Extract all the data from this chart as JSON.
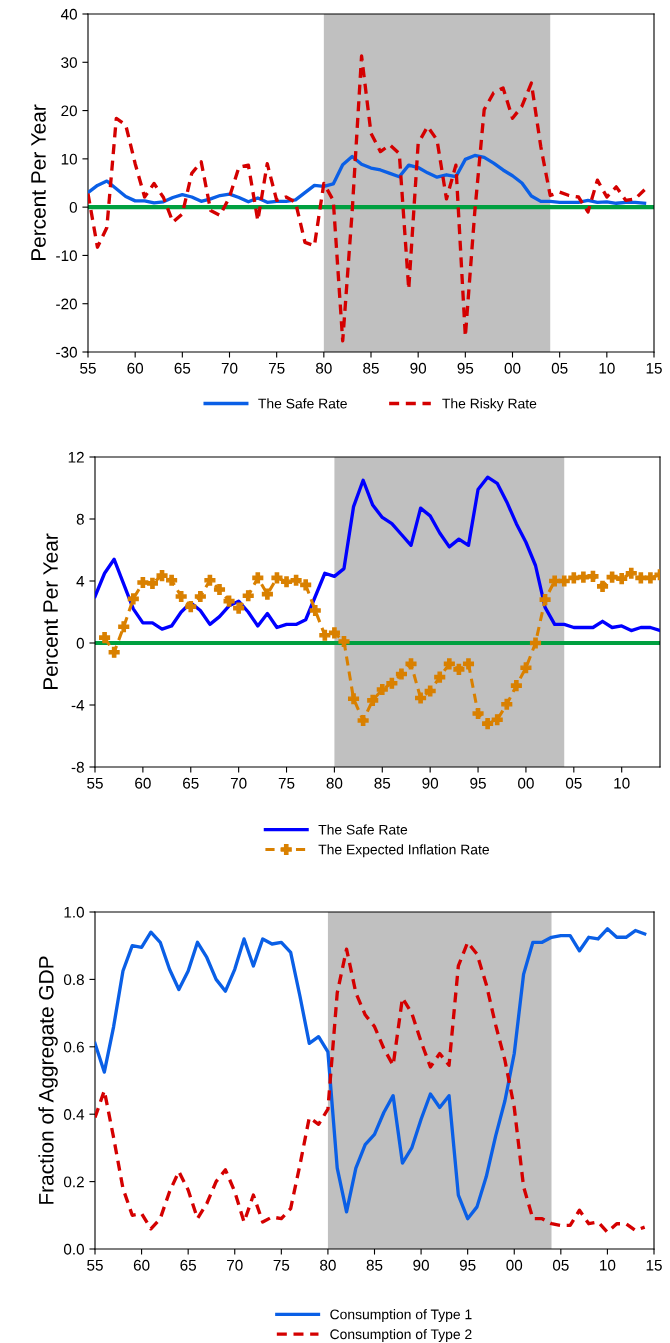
{
  "chart_data": [
    {
      "type": "line",
      "ylabel": "Percent Per Year",
      "x": [
        1955,
        1956,
        1957,
        1958,
        1959,
        1960,
        1961,
        1962,
        1963,
        1964,
        1965,
        1966,
        1967,
        1968,
        1969,
        1970,
        1971,
        1972,
        1973,
        1974,
        1975,
        1976,
        1977,
        1978,
        1979,
        1980,
        1981,
        1982,
        1983,
        1984,
        1985,
        1986,
        1987,
        1988,
        1989,
        1990,
        1991,
        1992,
        1993,
        1994,
        1995,
        1996,
        1997,
        1998,
        1999,
        2000,
        2001,
        2002,
        2003,
        2004,
        2005,
        2006,
        2007,
        2008,
        2009,
        2010,
        2011,
        2012,
        2013,
        2014
      ],
      "series": [
        {
          "name": "The Safe Rate",
          "color": "#0a5fe6",
          "line_style": "solid",
          "values": [
            3.0,
            4.5,
            5.4,
            3.8,
            2.2,
            1.3,
            1.3,
            0.9,
            1.1,
            2.0,
            2.6,
            2.1,
            1.2,
            1.7,
            2.4,
            2.7,
            2.0,
            1.1,
            1.9,
            1.0,
            1.2,
            1.2,
            1.5,
            3.0,
            4.5,
            4.3,
            4.8,
            8.8,
            10.5,
            8.9,
            8.1,
            7.7,
            7.0,
            6.3,
            8.7,
            8.2,
            7.1,
            6.2,
            6.7,
            6.3,
            9.9,
            10.7,
            10.3,
            9.1,
            7.7,
            6.5,
            5.0,
            2.3,
            1.2,
            1.2,
            1.0,
            1.0,
            1.0,
            1.4,
            1.0,
            1.1,
            0.8,
            1.0,
            1.0,
            0.8
          ]
        },
        {
          "name": "The Risky Rate",
          "color": "#d40000",
          "line_style": "dashed",
          "values": [
            2.8,
            -8.3,
            -4.2,
            18.4,
            17,
            9,
            2.1,
            4.9,
            2,
            -3.1,
            -1.4,
            7,
            9.4,
            -0.7,
            -1.7,
            2.1,
            8.3,
            8.7,
            -2.8,
            9,
            1.4,
            2.1,
            1.0,
            -7.3,
            -8,
            4.9,
            1.4,
            -27.7,
            -1,
            31.3,
            15.3,
            11.5,
            12.9,
            11.1,
            -17,
            13.2,
            16.7,
            13.9,
            1.7,
            8.7,
            -26.8,
            -1,
            20.2,
            23.7,
            24.7,
            18.4,
            20.9,
            25.7,
            12.5,
            2.4,
            3.1,
            2.4,
            2.1,
            -1.0,
            5.6,
            2.1,
            4.2,
            1.4,
            1.7,
            3.6
          ]
        }
      ],
      "xlim": [
        1955,
        2015
      ],
      "xticks": [
        {
          "value": 1955,
          "label": "55"
        },
        {
          "value": 1960,
          "label": "60"
        },
        {
          "value": 1965,
          "label": "65"
        },
        {
          "value": 1970,
          "label": "70"
        },
        {
          "value": 1975,
          "label": "75"
        },
        {
          "value": 1980,
          "label": "80"
        },
        {
          "value": 1985,
          "label": "85"
        },
        {
          "value": 1990,
          "label": "90"
        },
        {
          "value": 1995,
          "label": "95"
        },
        {
          "value": 2000,
          "label": "00"
        },
        {
          "value": 2005,
          "label": "05"
        },
        {
          "value": 2010,
          "label": "10"
        },
        {
          "value": 2015,
          "label": "15"
        }
      ],
      "ylim": [
        -30,
        40
      ],
      "yticks": [
        -30,
        -20,
        -10,
        0,
        10,
        20,
        30,
        40
      ],
      "ref_lines": [
        {
          "axis": "y",
          "value": 0,
          "color": "#00a040"
        }
      ],
      "bands": [
        {
          "axis": "x",
          "from": 1980,
          "to": 2004,
          "color": "#c0c0c0"
        }
      ],
      "grid": false,
      "legend": "bottom"
    },
    {
      "type": "line",
      "ylabel": "Percent Per Year",
      "x": [
        1955,
        1956,
        1957,
        1958,
        1959,
        1960,
        1961,
        1962,
        1963,
        1964,
        1965,
        1966,
        1967,
        1968,
        1969,
        1970,
        1971,
        1972,
        1973,
        1974,
        1975,
        1976,
        1977,
        1978,
        1979,
        1980,
        1981,
        1982,
        1983,
        1984,
        1985,
        1986,
        1987,
        1988,
        1989,
        1990,
        1991,
        1992,
        1993,
        1994,
        1995,
        1996,
        1997,
        1998,
        1999,
        2000,
        2001,
        2002,
        2003,
        2004,
        2005,
        2006,
        2007,
        2008,
        2009,
        2010,
        2011,
        2012,
        2013,
        2014
      ],
      "series": [
        {
          "name": "The Safe Rate",
          "color": "#0000ff",
          "line_style": "solid",
          "marker": "none",
          "values": [
            3.0,
            4.5,
            5.4,
            3.8,
            2.2,
            1.3,
            1.3,
            0.9,
            1.1,
            2.0,
            2.6,
            2.1,
            1.2,
            1.7,
            2.4,
            2.7,
            2.0,
            1.1,
            1.9,
            1.0,
            1.2,
            1.2,
            1.5,
            3.0,
            4.5,
            4.3,
            4.8,
            8.8,
            10.5,
            8.9,
            8.1,
            7.7,
            7.0,
            6.3,
            8.7,
            8.2,
            7.1,
            6.2,
            6.7,
            6.3,
            9.9,
            10.7,
            10.3,
            9.1,
            7.7,
            6.5,
            5.0,
            2.3,
            1.2,
            1.2,
            1.0,
            1.0,
            1.0,
            1.4,
            1.0,
            1.1,
            0.8,
            1.0,
            1.0,
            0.8
          ]
        },
        {
          "name": "The Expected Inflation Rate",
          "color": "#d98000",
          "line_style": "dashed",
          "marker": "cross",
          "values": [
            null,
            0.35,
            -0.6,
            1.05,
            2.85,
            3.9,
            3.85,
            4.35,
            4.05,
            3.0,
            2.35,
            3.0,
            4.05,
            3.45,
            2.7,
            2.25,
            3.05,
            4.2,
            3.15,
            4.2,
            3.95,
            4.05,
            3.75,
            2.1,
            0.5,
            0.65,
            0.1,
            -3.6,
            -5.0,
            -3.7,
            -3.0,
            -2.6,
            -2.0,
            -1.35,
            -3.55,
            -3.1,
            -2.2,
            -1.35,
            -1.7,
            -1.35,
            -4.55,
            -5.2,
            -4.95,
            -3.95,
            -2.75,
            -1.6,
            0.0,
            2.8,
            4.0,
            4.0,
            4.2,
            4.25,
            4.3,
            3.65,
            4.25,
            4.15,
            4.5,
            4.2,
            4.2,
            4.4
          ]
        }
      ],
      "xlim": [
        1955,
        2014
      ],
      "xticks": [
        {
          "value": 1955,
          "label": "55"
        },
        {
          "value": 1960,
          "label": "60"
        },
        {
          "value": 1965,
          "label": "65"
        },
        {
          "value": 1970,
          "label": "70"
        },
        {
          "value": 1975,
          "label": "75"
        },
        {
          "value": 1980,
          "label": "80"
        },
        {
          "value": 1985,
          "label": "85"
        },
        {
          "value": 1990,
          "label": "90"
        },
        {
          "value": 1995,
          "label": "95"
        },
        {
          "value": 2000,
          "label": "00"
        },
        {
          "value": 2005,
          "label": "05"
        },
        {
          "value": 2010,
          "label": "10"
        }
      ],
      "ylim": [
        -8,
        12
      ],
      "yticks": [
        -8,
        -4,
        0,
        4,
        8,
        12
      ],
      "ref_lines": [
        {
          "axis": "y",
          "value": 0,
          "color": "#00a040"
        }
      ],
      "bands": [
        {
          "axis": "x",
          "from": 1980,
          "to": 2004,
          "color": "#c0c0c0"
        }
      ],
      "grid": false,
      "legend": "bottom"
    },
    {
      "type": "line",
      "ylabel": "Fraction of Aggregate GDP",
      "x": [
        1955,
        1956,
        1957,
        1958,
        1959,
        1960,
        1961,
        1962,
        1963,
        1964,
        1965,
        1966,
        1967,
        1968,
        1969,
        1970,
        1971,
        1972,
        1973,
        1974,
        1975,
        1976,
        1977,
        1978,
        1979,
        1980,
        1981,
        1982,
        1983,
        1984,
        1985,
        1986,
        1987,
        1988,
        1989,
        1990,
        1991,
        1992,
        1993,
        1994,
        1995,
        1996,
        1997,
        1998,
        1999,
        2000,
        2001,
        2002,
        2003,
        2004,
        2005,
        2006,
        2007,
        2008,
        2009,
        2010,
        2011,
        2012,
        2013,
        2014
      ],
      "series": [
        {
          "name": "Consumption of Type 1",
          "color": "#0a5fe6",
          "line_style": "solid",
          "values": [
            0.61,
            0.525,
            0.66,
            0.825,
            0.9,
            0.895,
            0.94,
            0.91,
            0.83,
            0.77,
            0.825,
            0.91,
            0.865,
            0.8,
            0.765,
            0.83,
            0.92,
            0.84,
            0.92,
            0.905,
            0.91,
            0.88,
            0.75,
            0.61,
            0.63,
            0.585,
            0.24,
            0.11,
            0.24,
            0.31,
            0.34,
            0.405,
            0.455,
            0.255,
            0.3,
            0.385,
            0.46,
            0.42,
            0.455,
            0.16,
            0.09,
            0.125,
            0.215,
            0.335,
            0.44,
            0.58,
            0.815,
            0.91,
            0.91,
            0.925,
            0.93,
            0.93,
            0.885,
            0.925,
            0.92,
            0.95,
            0.925,
            0.925,
            0.945,
            0.935
          ]
        },
        {
          "name": "Consumption of Type 2",
          "color": "#d40000",
          "line_style": "dashed",
          "values": [
            0.39,
            0.47,
            0.33,
            0.18,
            0.1,
            0.105,
            0.06,
            0.09,
            0.17,
            0.23,
            0.175,
            0.09,
            0.135,
            0.2,
            0.235,
            0.17,
            0.08,
            0.16,
            0.08,
            0.095,
            0.09,
            0.12,
            0.25,
            0.39,
            0.37,
            0.415,
            0.76,
            0.89,
            0.76,
            0.695,
            0.66,
            0.595,
            0.545,
            0.745,
            0.7,
            0.615,
            0.54,
            0.58,
            0.545,
            0.84,
            0.91,
            0.875,
            0.785,
            0.665,
            0.56,
            0.42,
            0.185,
            0.09,
            0.09,
            0.075,
            0.07,
            0.07,
            0.115,
            0.075,
            0.08,
            0.05,
            0.075,
            0.075,
            0.055,
            0.065
          ]
        }
      ],
      "xlim": [
        1955,
        2015
      ],
      "xticks": [
        {
          "value": 1955,
          "label": "55"
        },
        {
          "value": 1960,
          "label": "60"
        },
        {
          "value": 1965,
          "label": "65"
        },
        {
          "value": 1970,
          "label": "70"
        },
        {
          "value": 1975,
          "label": "75"
        },
        {
          "value": 1980,
          "label": "80"
        },
        {
          "value": 1985,
          "label": "85"
        },
        {
          "value": 1990,
          "label": "90"
        },
        {
          "value": 1995,
          "label": "95"
        },
        {
          "value": 2000,
          "label": "00"
        },
        {
          "value": 2005,
          "label": "05"
        },
        {
          "value": 2010,
          "label": "10"
        },
        {
          "value": 2015,
          "label": "15"
        }
      ],
      "ylim": [
        0,
        1
      ],
      "yticks": [
        {
          "value": 0,
          "label": "0.0"
        },
        {
          "value": 0.2,
          "label": "0.2"
        },
        {
          "value": 0.4,
          "label": "0.4"
        },
        {
          "value": 0.6,
          "label": "0.6"
        },
        {
          "value": 0.8,
          "label": "0.8"
        },
        {
          "value": 1,
          "label": "1.0"
        }
      ],
      "bands": [
        {
          "axis": "x",
          "from": 1980,
          "to": 2004,
          "color": "#c0c0c0"
        }
      ],
      "grid": false,
      "legend": "bottom"
    }
  ]
}
